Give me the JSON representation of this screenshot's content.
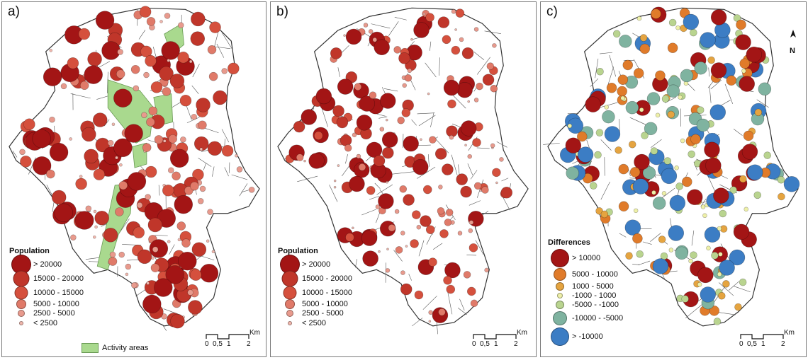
{
  "panels": [
    {
      "label": "a)"
    },
    {
      "label": "b)"
    },
    {
      "label": "c)"
    }
  ],
  "population_legend": {
    "title": "Population",
    "classes": [
      {
        "label": "> 20000",
        "color": "#a31515"
      },
      {
        "label": "15000 - 20000",
        "color": "#c0362a"
      },
      {
        "label": "10000 - 15000",
        "color": "#d5503d"
      },
      {
        "label": "5000 - 10000",
        "color": "#e07a69"
      },
      {
        "label": "2500 - 5000",
        "color": "#e89a8d"
      },
      {
        "label": "< 2500",
        "color": "#f0b7ad"
      }
    ],
    "activity_areas_label": "Activity areas",
    "activity_color": "#a9d98e"
  },
  "differences_legend": {
    "title": "Differences",
    "classes": [
      {
        "label": "> 10000",
        "color": "#a31515"
      },
      {
        "label": "5000 - 10000",
        "color": "#e07b2a"
      },
      {
        "label": "1000 - 5000",
        "color": "#e5a440"
      },
      {
        "label": "-1000 - 1000",
        "color": "#eef0a8"
      },
      {
        "label": "-5000 - -1000",
        "color": "#b9d48f"
      },
      {
        "label": "-10000 - -5000",
        "color": "#7fb3a0"
      },
      {
        "label": "> -10000",
        "color": "#3c7dc4"
      }
    ]
  },
  "scale": {
    "unit": "Km",
    "ticks": [
      "0",
      "0,5",
      "1",
      "2"
    ]
  },
  "north_label": "N"
}
